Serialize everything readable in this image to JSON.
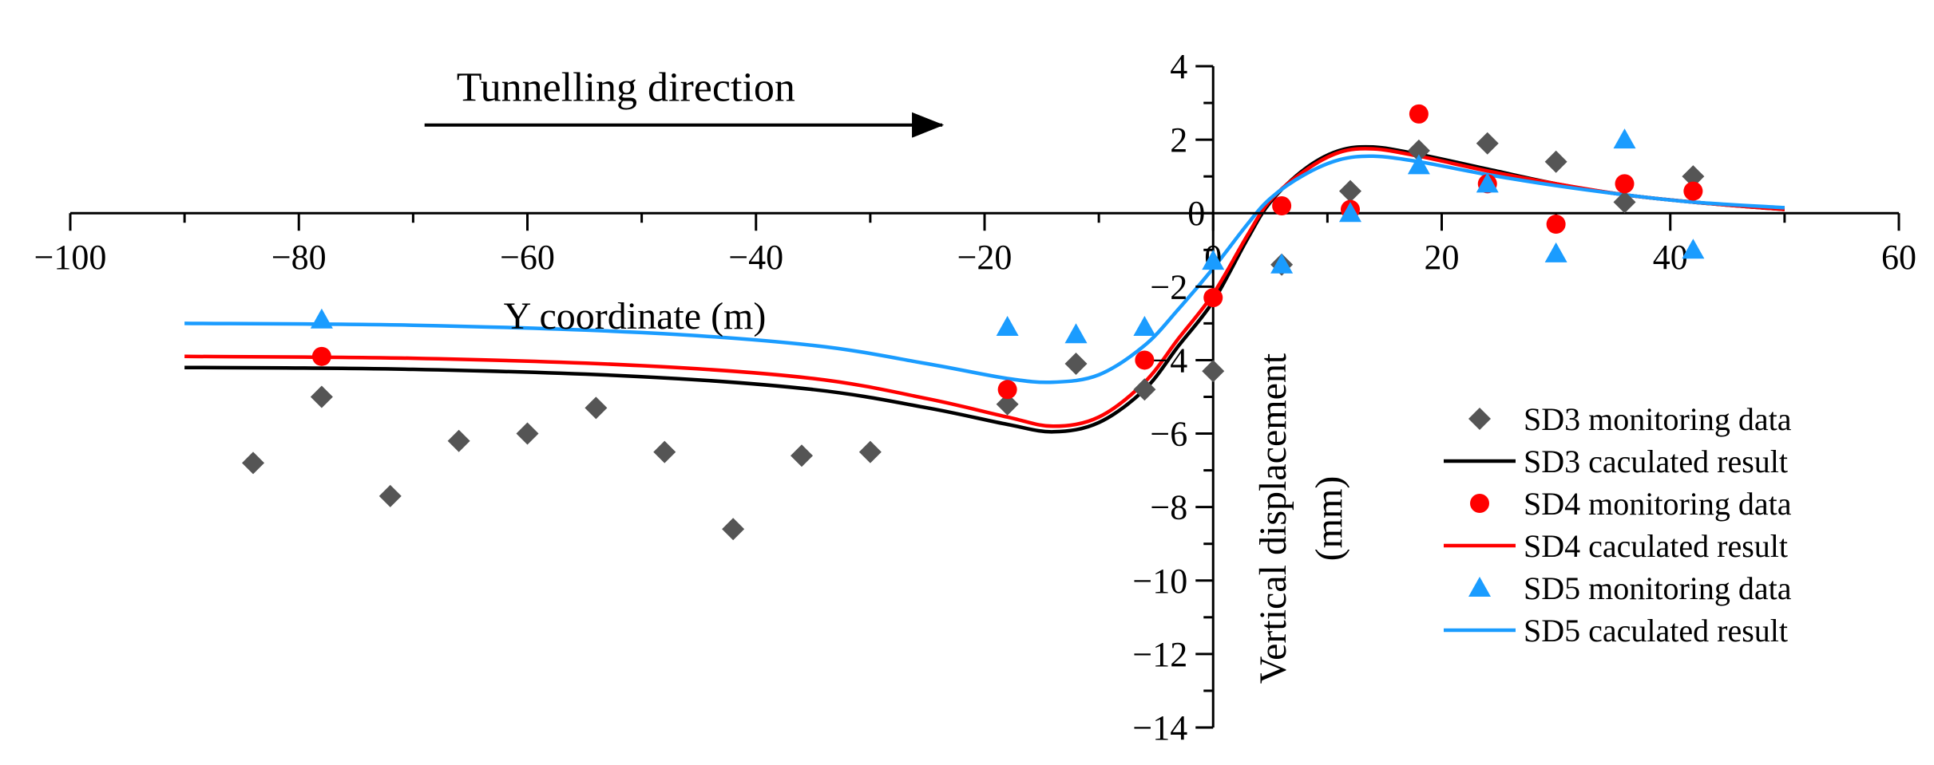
{
  "chart_data": {
    "type": "scatter",
    "title": "",
    "xlabel": "Y coordinate (m)",
    "ylabel": "Vertical displacement (mm)",
    "xlim": [
      -100,
      60
    ],
    "ylim": [
      -14,
      4
    ],
    "x_ticks": [
      -100,
      -80,
      -60,
      -40,
      -20,
      0,
      20,
      40,
      60
    ],
    "y_ticks": [
      4,
      2,
      0,
      -2,
      -4,
      -6,
      -8,
      -10,
      -12,
      -14
    ],
    "grid": false,
    "annotation": {
      "text": "Tunnelling direction",
      "arrow_from_x": -69,
      "arrow_to_x": -23,
      "arrow_y": 2.4
    },
    "legend_position": "right",
    "legend": [
      "SD3 monitoring data",
      "SD3 caculated result",
      "SD4 monitoring data",
      "SD4 caculated result",
      "SD5 monitoring data",
      "SD5 caculated result"
    ],
    "series": [
      {
        "name": "SD3 monitoring data",
        "kind": "scatter",
        "marker": "diamond",
        "color": "#555555",
        "points": [
          [
            -84,
            -6.8
          ],
          [
            -78,
            -5.0
          ],
          [
            -72,
            -7.7
          ],
          [
            -66,
            -6.2
          ],
          [
            -60,
            -6.0
          ],
          [
            -54,
            -5.3
          ],
          [
            -48,
            -6.5
          ],
          [
            -42,
            -8.6
          ],
          [
            -36,
            -6.6
          ],
          [
            -30,
            -6.5
          ],
          [
            -18,
            -5.2
          ],
          [
            -12,
            -4.1
          ],
          [
            -6,
            -4.8
          ],
          [
            0,
            -4.3
          ],
          [
            6,
            -1.4
          ],
          [
            12,
            0.6
          ],
          [
            18,
            1.7
          ],
          [
            24,
            1.9
          ],
          [
            30,
            1.4
          ],
          [
            36,
            0.3
          ],
          [
            42,
            1.0
          ]
        ]
      },
      {
        "name": "SD3 caculated result",
        "kind": "line",
        "color": "#000000",
        "points": [
          [
            -90,
            -4.2
          ],
          [
            -70,
            -4.25
          ],
          [
            -50,
            -4.45
          ],
          [
            -35,
            -4.8
          ],
          [
            -25,
            -5.3
          ],
          [
            -18,
            -5.75
          ],
          [
            -14,
            -5.95
          ],
          [
            -10,
            -5.7
          ],
          [
            -6,
            -4.8
          ],
          [
            -3,
            -3.6
          ],
          [
            0,
            -2.4
          ],
          [
            3,
            -0.7
          ],
          [
            5,
            0.3
          ],
          [
            8,
            1.2
          ],
          [
            11,
            1.7
          ],
          [
            14,
            1.8
          ],
          [
            18,
            1.6
          ],
          [
            24,
            1.2
          ],
          [
            30,
            0.8
          ],
          [
            36,
            0.5
          ],
          [
            42,
            0.3
          ],
          [
            50,
            0.1
          ]
        ]
      },
      {
        "name": "SD4 monitoring data",
        "kind": "scatter",
        "marker": "circle",
        "color": "#ff0000",
        "points": [
          [
            -78,
            -3.9
          ],
          [
            -18,
            -4.8
          ],
          [
            -6,
            -4.0
          ],
          [
            0,
            -2.3
          ],
          [
            6,
            0.2
          ],
          [
            12,
            0.1
          ],
          [
            18,
            2.7
          ],
          [
            24,
            0.8
          ],
          [
            30,
            -0.3
          ],
          [
            36,
            0.8
          ],
          [
            42,
            0.6
          ]
        ]
      },
      {
        "name": "SD4 caculated result",
        "kind": "line",
        "color": "#ff0000",
        "points": [
          [
            -90,
            -3.9
          ],
          [
            -70,
            -3.95
          ],
          [
            -50,
            -4.15
          ],
          [
            -35,
            -4.5
          ],
          [
            -25,
            -5.05
          ],
          [
            -18,
            -5.55
          ],
          [
            -14,
            -5.8
          ],
          [
            -10,
            -5.55
          ],
          [
            -6,
            -4.6
          ],
          [
            -3,
            -3.4
          ],
          [
            0,
            -2.2
          ],
          [
            3,
            -0.6
          ],
          [
            5,
            0.35
          ],
          [
            8,
            1.15
          ],
          [
            11,
            1.65
          ],
          [
            14,
            1.75
          ],
          [
            18,
            1.55
          ],
          [
            24,
            1.15
          ],
          [
            30,
            0.8
          ],
          [
            36,
            0.5
          ],
          [
            42,
            0.3
          ],
          [
            50,
            0.1
          ]
        ]
      },
      {
        "name": "SD5 monitoring data",
        "kind": "scatter",
        "marker": "triangle",
        "color": "#1a9cff",
        "points": [
          [
            -78,
            -2.9
          ],
          [
            -18,
            -3.1
          ],
          [
            -12,
            -3.3
          ],
          [
            -6,
            -3.1
          ],
          [
            0,
            -1.3
          ],
          [
            6,
            -1.4
          ],
          [
            12,
            0.0
          ],
          [
            18,
            1.3
          ],
          [
            24,
            0.8
          ],
          [
            30,
            -1.1
          ],
          [
            36,
            2.0
          ],
          [
            42,
            -1.0
          ]
        ]
      },
      {
        "name": "SD5 caculated result",
        "kind": "line",
        "color": "#1a9cff",
        "points": [
          [
            -90,
            -3.0
          ],
          [
            -70,
            -3.05
          ],
          [
            -50,
            -3.25
          ],
          [
            -35,
            -3.6
          ],
          [
            -25,
            -4.1
          ],
          [
            -18,
            -4.5
          ],
          [
            -14,
            -4.6
          ],
          [
            -10,
            -4.4
          ],
          [
            -6,
            -3.6
          ],
          [
            -3,
            -2.6
          ],
          [
            0,
            -1.5
          ],
          [
            3,
            -0.3
          ],
          [
            5,
            0.4
          ],
          [
            8,
            1.05
          ],
          [
            11,
            1.45
          ],
          [
            14,
            1.55
          ],
          [
            18,
            1.4
          ],
          [
            24,
            1.05
          ],
          [
            30,
            0.75
          ],
          [
            36,
            0.5
          ],
          [
            42,
            0.3
          ],
          [
            50,
            0.15
          ]
        ]
      }
    ]
  }
}
